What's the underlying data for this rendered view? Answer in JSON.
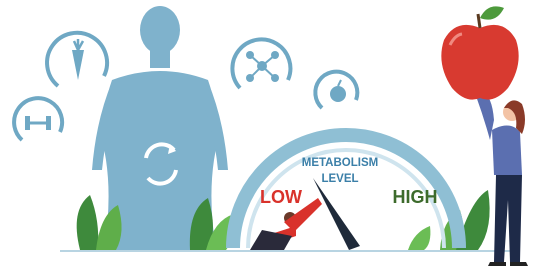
{
  "gauge": {
    "title_lines": [
      "METABOLISM",
      "LEVEL"
    ],
    "low_label": "LOW",
    "high_label": "HIGH"
  }
}
